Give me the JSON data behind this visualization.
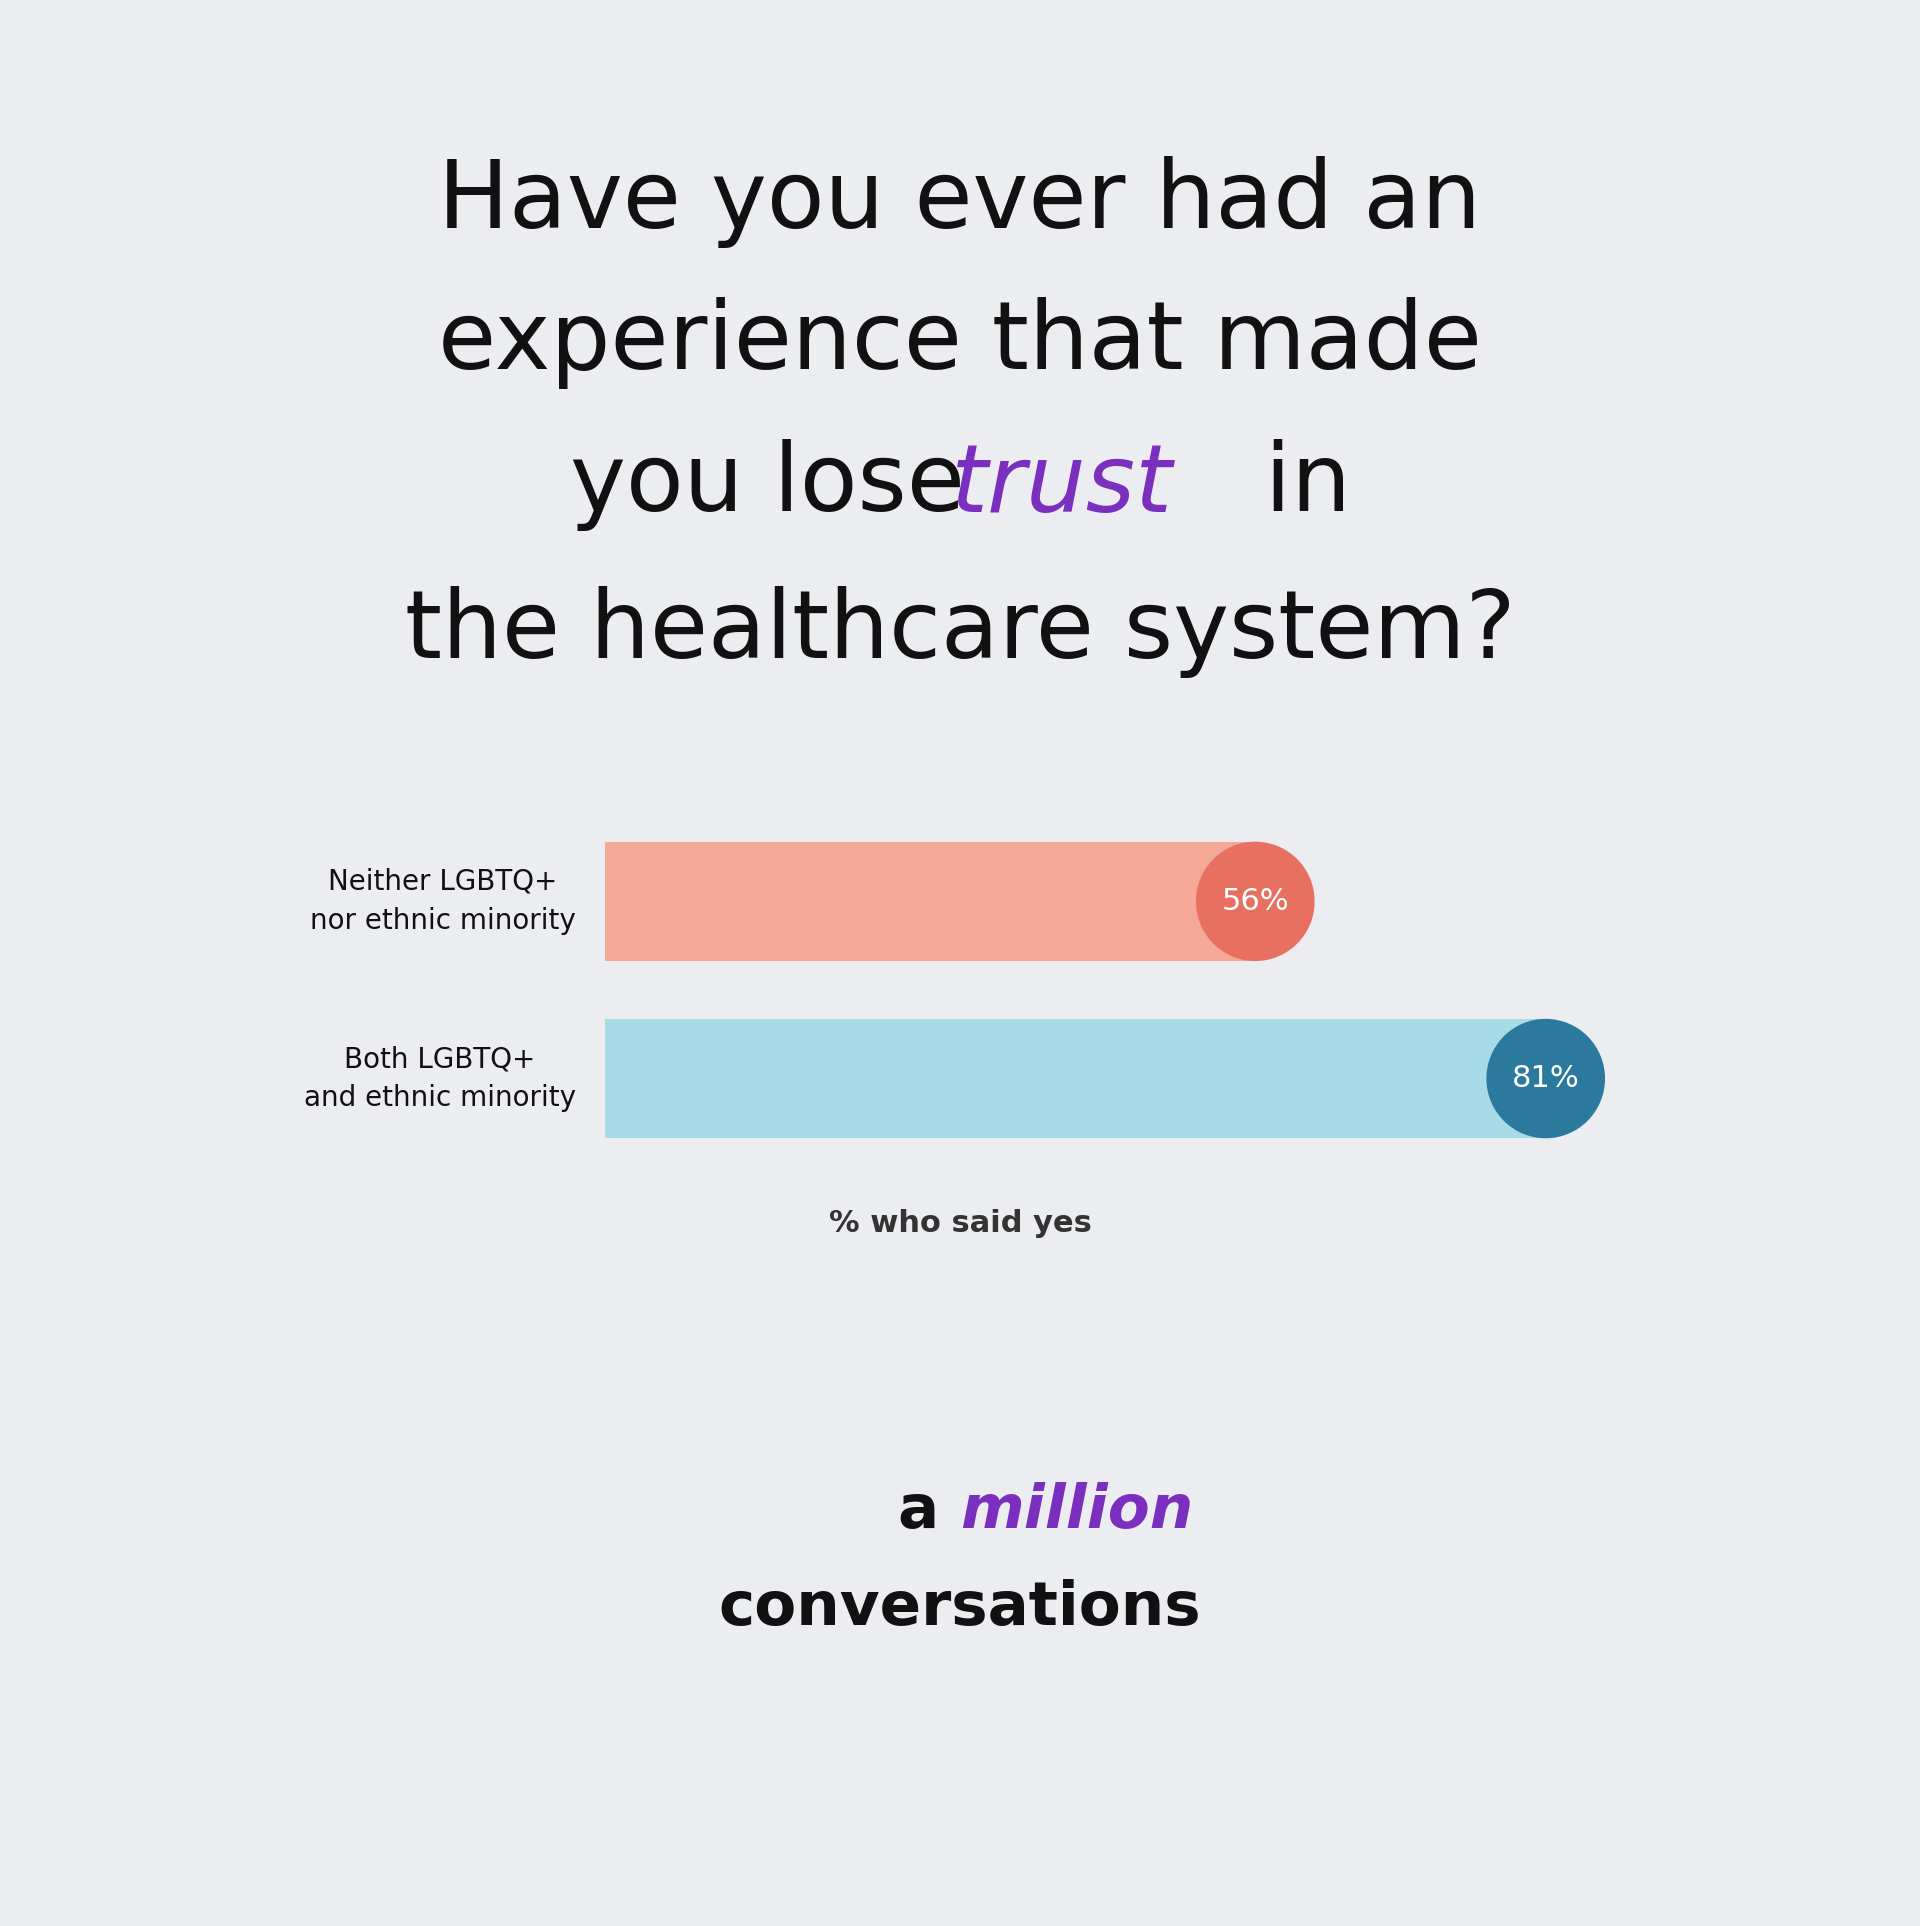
{
  "background_color": "#ecedf1",
  "title_color": "#111111",
  "trust_color": "#7B2FBE",
  "bars": [
    {
      "label": "Neither LGBTQ+\nnor ethnic minority",
      "value": 56,
      "bar_color": "#F4A898",
      "dot_color": "#E87060",
      "text_color": "#ffffff"
    },
    {
      "label": "Both LGBTQ+\nand ethnic minority",
      "value": 81,
      "bar_color": "#A8DBE8",
      "dot_color": "#2B7A9E",
      "text_color": "#ffffff"
    }
  ],
  "max_value": 100,
  "xlabel": "% who said yes",
  "xlabel_color": "#333333",
  "brand_color_million": "#7B2FBE",
  "brand_color_black": "#111111"
}
